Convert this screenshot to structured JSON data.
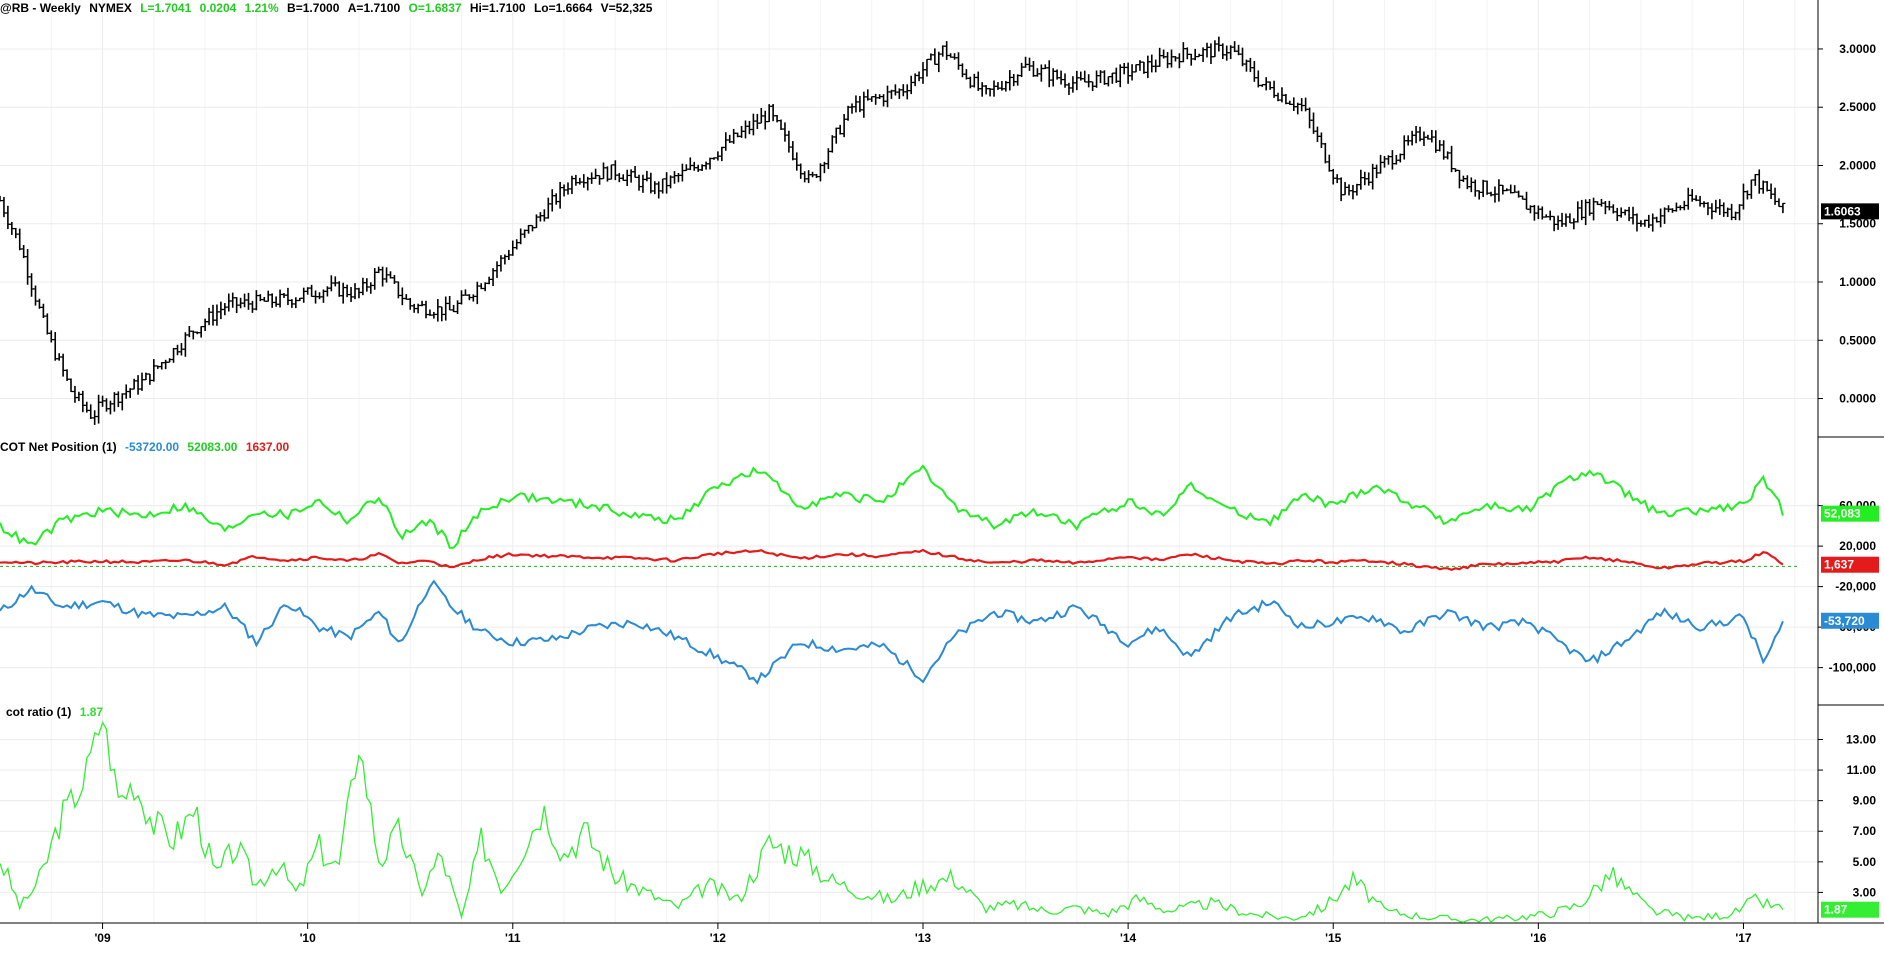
{
  "header": {
    "symbol": "@RB - Weekly",
    "exchange": "NYMEX",
    "last": "L=1.7041",
    "change": "0.0204",
    "change_pct": "1.21%",
    "bid": "B=1.7000",
    "ask": "A=1.7100",
    "open": "O=1.6837",
    "high": "Hi=1.7100",
    "low": "Lo=1.6664",
    "volume": "V=52,325"
  },
  "colors": {
    "price": "#000000",
    "commercials": "#2a8ad4",
    "large_spec": "#22ee22",
    "small_spec": "#e31b1b",
    "ratio": "#33ee33",
    "grid": "#ececec"
  },
  "chart_data": [
    {
      "type": "line",
      "style": "ohlc-bars",
      "title": "@RB - Weekly NYMEX",
      "y_ticks": [
        "3.0000",
        "2.5000",
        "2.0000",
        "1.5000",
        "1.0000",
        "0.5000",
        "0.0000"
      ],
      "ylim": [
        -0.27,
        3.3
      ],
      "last_label": "1.6063",
      "x": [
        "2008.5",
        "2008.6",
        "2008.72",
        "2008.85",
        "2008.95",
        "2009.0",
        "2009.2",
        "2009.45",
        "2009.6",
        "2009.9",
        "2010.1",
        "2010.25",
        "2010.35",
        "2010.5",
        "2010.7",
        "2010.85",
        "2011.05",
        "2011.3",
        "2011.5",
        "2011.7",
        "2011.9",
        "2012.25",
        "2012.45",
        "2012.65",
        "2012.9",
        "2013.1",
        "2013.3",
        "2013.5",
        "2013.75",
        "2014.0",
        "2014.25",
        "2014.5",
        "2014.65",
        "2014.85",
        "2015.05",
        "2015.2",
        "2015.45",
        "2015.65",
        "2015.85",
        "2016.1",
        "2016.3",
        "2016.5",
        "2016.75",
        "2016.95",
        "2017.05",
        "2017.2"
      ],
      "close": [
        1.7,
        1.3,
        0.6,
        0.05,
        -0.15,
        -0.05,
        0.15,
        0.6,
        0.8,
        0.85,
        0.95,
        0.9,
        1.1,
        0.8,
        0.75,
        1.0,
        1.4,
        1.9,
        1.95,
        1.8,
        2.0,
        2.45,
        1.85,
        2.5,
        2.65,
        3.0,
        2.6,
        2.85,
        2.7,
        2.8,
        2.95,
        3.0,
        2.7,
        2.5,
        1.75,
        1.95,
        2.3,
        1.85,
        1.75,
        1.5,
        1.7,
        1.5,
        1.7,
        1.6,
        1.9,
        1.6
      ]
    },
    {
      "type": "line",
      "title": "COT Net Position (1)",
      "y_ticks": [
        "60,000",
        "20,000",
        "-20,000",
        "-60,000",
        "-100,000"
      ],
      "ylim": [
        -130000,
        110000
      ],
      "x": [
        "2008.5",
        "2008.65",
        "2008.8",
        "2009.0",
        "2009.2",
        "2009.4",
        "2009.6",
        "2009.75",
        "2009.9",
        "2010.05",
        "2010.2",
        "2010.35",
        "2010.45",
        "2010.6",
        "2010.7",
        "2010.85",
        "2011.0",
        "2011.2",
        "2011.4",
        "2011.6",
        "2011.8",
        "2012.0",
        "2012.2",
        "2012.4",
        "2012.6",
        "2012.8",
        "2013.0",
        "2013.15",
        "2013.35",
        "2013.55",
        "2013.75",
        "2014.0",
        "2014.15",
        "2014.3",
        "2014.5",
        "2014.7",
        "2014.85",
        "2015.0",
        "2015.2",
        "2015.35",
        "2015.55",
        "2015.75",
        "2015.95",
        "2016.1",
        "2016.25",
        "2016.45",
        "2016.6",
        "2016.8",
        "2017.0",
        "2017.1",
        "2017.2"
      ],
      "series": [
        {
          "name": "-53720.00",
          "last_label": "-53,720",
          "values": [
            -45000,
            -22000,
            -40000,
            -35000,
            -48000,
            -50000,
            -40000,
            -75000,
            -35000,
            -60000,
            -70000,
            -45000,
            -78000,
            -15000,
            -40000,
            -65000,
            -75000,
            -72000,
            -60000,
            -55000,
            -70000,
            -90000,
            -112000,
            -75000,
            -82000,
            -78000,
            -110000,
            -70000,
            -45000,
            -55000,
            -40000,
            -75000,
            -60000,
            -90000,
            -50000,
            -35000,
            -60000,
            -55000,
            -50000,
            -65000,
            -45000,
            -60000,
            -55000,
            -75000,
            -95000,
            -70000,
            -45000,
            -60000,
            -50000,
            -95000,
            -53720
          ]
        },
        {
          "name": "52083.00",
          "last_label": "52,083",
          "values": [
            40000,
            20000,
            45000,
            55000,
            50000,
            60000,
            35000,
            55000,
            50000,
            65000,
            45000,
            70000,
            30000,
            45000,
            20000,
            55000,
            70000,
            65000,
            60000,
            50000,
            45000,
            80000,
            95000,
            60000,
            70000,
            65000,
            95000,
            60000,
            40000,
            55000,
            40000,
            65000,
            50000,
            80000,
            55000,
            45000,
            70000,
            60000,
            80000,
            65000,
            45000,
            60000,
            55000,
            80000,
            95000,
            70000,
            50000,
            55000,
            60000,
            85000,
            52083
          ]
        },
        {
          "name": "1637.00",
          "last_label": "1,637",
          "values": [
            5000,
            3000,
            4000,
            5000,
            4000,
            6000,
            2000,
            10000,
            6000,
            9000,
            5000,
            12000,
            3000,
            6000,
            -2000,
            8000,
            12000,
            10000,
            9000,
            8000,
            6000,
            13000,
            15000,
            8000,
            12000,
            10000,
            15000,
            9000,
            3000,
            6000,
            3000,
            10000,
            6000,
            12000,
            6000,
            2000,
            6000,
            4000,
            6000,
            2000,
            -3000,
            2000,
            3000,
            5000,
            9000,
            4000,
            -2000,
            3000,
            5000,
            14000,
            1637
          ]
        }
      ]
    },
    {
      "type": "line",
      "title": "cot ratio (1)",
      "y_ticks": [
        "13.00",
        "11.00",
        "9.00",
        "7.00",
        "5.00",
        "3.00"
      ],
      "ylim": [
        1.0,
        14.6
      ],
      "last_value": "1.87",
      "x": [
        "2008.5",
        "2008.6",
        "2008.7",
        "2008.8",
        "2008.9",
        "2009.0",
        "2009.08",
        "2009.15",
        "2009.25",
        "2009.35",
        "2009.45",
        "2009.55",
        "2009.65",
        "2009.75",
        "2009.85",
        "2009.95",
        "2010.05",
        "2010.15",
        "2010.25",
        "2010.35",
        "2010.45",
        "2010.55",
        "2010.65",
        "2010.75",
        "2010.85",
        "2010.95",
        "2011.05",
        "2011.15",
        "2011.25",
        "2011.35",
        "2011.5",
        "2011.65",
        "2011.8",
        "2011.95",
        "2012.1",
        "2012.25",
        "2012.4",
        "2012.55",
        "2012.7",
        "2012.85",
        "2013.0",
        "2013.15",
        "2013.3",
        "2013.45",
        "2013.6",
        "2013.75",
        "2013.9",
        "2014.05",
        "2014.2",
        "2014.4",
        "2014.6",
        "2014.8",
        "2014.95",
        "2015.1",
        "2015.25",
        "2015.45",
        "2015.65",
        "2015.85",
        "2016.05",
        "2016.2",
        "2016.35",
        "2016.55",
        "2016.75",
        "2016.95",
        "2017.05",
        "2017.2"
      ],
      "series": [
        {
          "name": "1.87",
          "values": [
            5.2,
            2.0,
            4.0,
            8.0,
            10.0,
            14.5,
            9.0,
            10.2,
            7.5,
            6.5,
            8.5,
            4.0,
            6.0,
            3.5,
            5.0,
            2.8,
            6.0,
            4.5,
            12.8,
            5.0,
            7.0,
            3.0,
            5.5,
            1.3,
            6.5,
            3.2,
            6.0,
            8.5,
            5.5,
            7.0,
            4.0,
            3.0,
            2.0,
            3.5,
            2.5,
            6.2,
            5.5,
            3.8,
            3.0,
            2.5,
            3.5,
            4.0,
            2.0,
            2.2,
            1.8,
            2.0,
            1.6,
            2.6,
            1.8,
            2.3,
            1.6,
            1.3,
            2.0,
            3.8,
            1.8,
            1.4,
            1.2,
            1.3,
            1.6,
            2.2,
            4.2,
            1.8,
            1.3,
            1.6,
            2.5,
            1.87
          ]
        }
      ]
    }
  ],
  "x_axis_ticks": [
    {
      "label": "'09",
      "x": 2009.0
    },
    {
      "label": "'10",
      "x": 2010.0
    },
    {
      "label": "'11",
      "x": 2011.0
    },
    {
      "label": "'12",
      "x": 2012.0
    },
    {
      "label": "'13",
      "x": 2013.0
    },
    {
      "label": "'14",
      "x": 2014.0
    },
    {
      "label": "'15",
      "x": 2015.0
    },
    {
      "label": "'16",
      "x": 2016.0
    },
    {
      "label": "'17",
      "x": 2017.0
    }
  ]
}
